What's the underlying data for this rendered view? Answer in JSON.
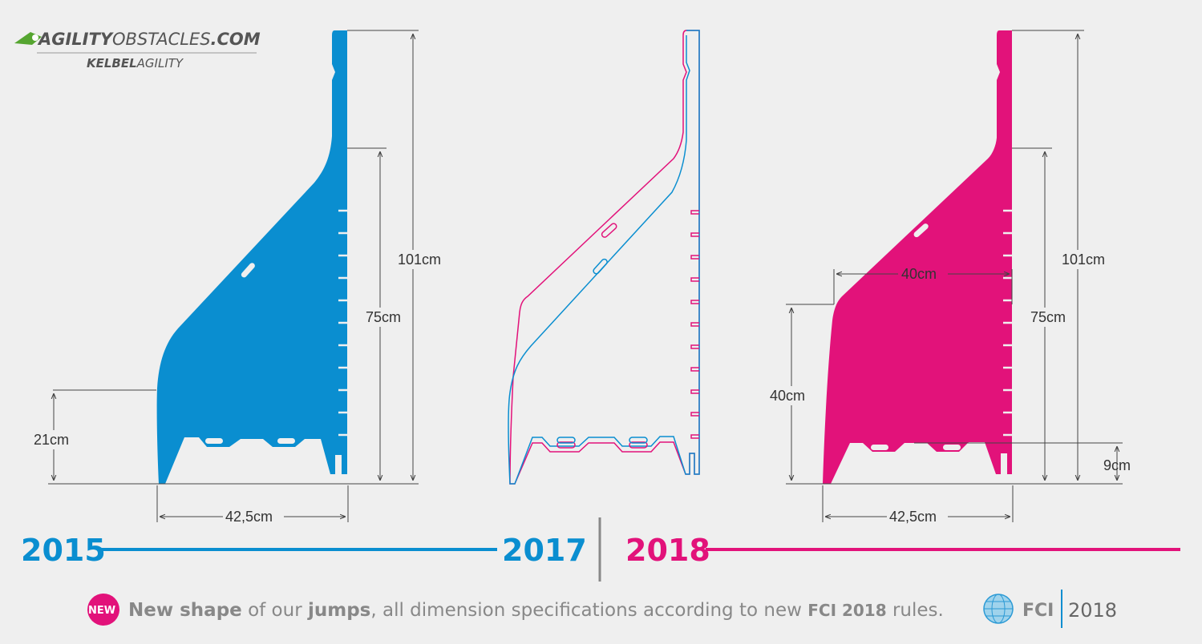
{
  "logo": {
    "brand_a": "AGILITY",
    "brand_b": "OBSTACLES",
    "brand_c": ".COM",
    "sub_a": "KELBEL",
    "sub_b": "AGILITY"
  },
  "colors": {
    "blue": "#0a8ed0",
    "pink": "#e2127a",
    "gray": "#888888"
  },
  "jump_2015": {
    "height_total": "101cm",
    "height_mid": "75cm",
    "height_low": "21cm",
    "width": "42,5cm"
  },
  "jump_2018": {
    "height_total": "101cm",
    "height_mid": "75cm",
    "height_low": "40cm",
    "width_top": "40cm",
    "width_bottom": "42,5cm",
    "foot": "9cm"
  },
  "timeline": {
    "year_a": "2015",
    "year_b": "2017",
    "year_c": "2018"
  },
  "footer": {
    "badge": "NEW",
    "t1": "New shape",
    "t2": " of our ",
    "t3": "jumps",
    "t4": ", all dimension specifications according to new ",
    "t5": "FCI 2018",
    "t6": " rules.",
    "fci_label": "FCI",
    "fci_year": "2018"
  }
}
